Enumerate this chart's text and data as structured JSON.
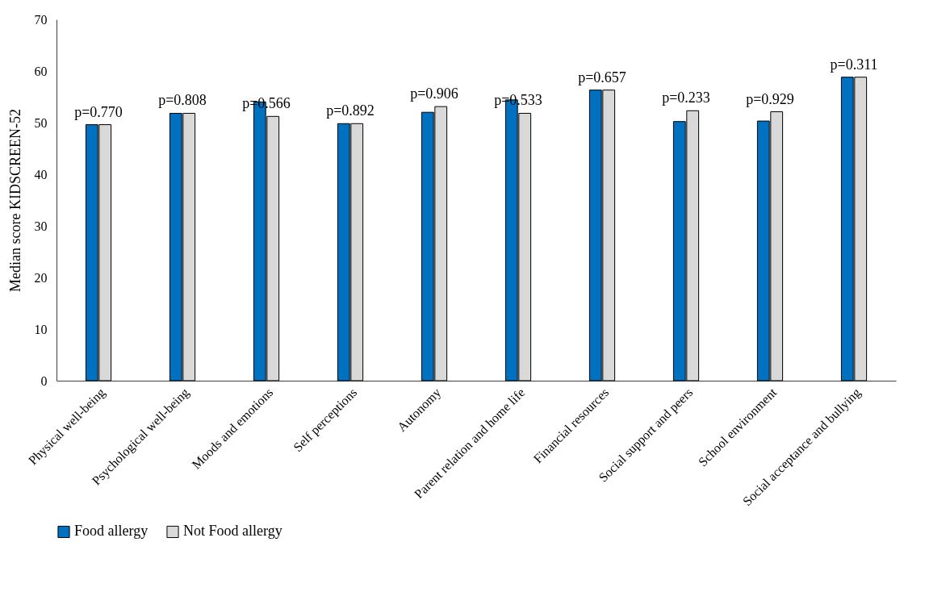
{
  "chart_data": {
    "type": "bar",
    "ylabel": "Median score KIDSCREEN-52",
    "categories": [
      "Physical well-being",
      "Psychological well-being",
      "Moods and emotions",
      "Self perceptions",
      "Autonomy",
      "Parent relation and home life",
      "Financial resources",
      "Social support and peers",
      "School environment",
      "Social acceptance and bullying"
    ],
    "series": [
      {
        "name": "Food allergy",
        "color": "#0070c0",
        "values": [
          49.6,
          51.8,
          54.0,
          49.8,
          52.0,
          54.4,
          56.3,
          50.2,
          50.3,
          58.8
        ]
      },
      {
        "name": "Not Food allergy",
        "color": "#d9d9d9",
        "values": [
          49.6,
          51.8,
          51.2,
          49.8,
          53.1,
          51.8,
          56.3,
          52.3,
          52.1,
          58.8
        ]
      }
    ],
    "ylim": [
      0,
      70
    ],
    "yticks": [
      0,
      10,
      20,
      30,
      40,
      50,
      60,
      70
    ],
    "grid": false,
    "legend": "bottom",
    "annotations": [
      {
        "text": "p=0.770",
        "x": "Physical well-being",
        "y": 49.6
      },
      {
        "text": "p=0.808",
        "x": "Psychological well-being",
        "y": 51.8
      },
      {
        "text": "p=0.566",
        "x": "Moods and emotions",
        "y": 51.2
      },
      {
        "text": "p=0.892",
        "x": "Self perceptions",
        "y": 49.8
      },
      {
        "text": "p=0.906",
        "x": "Autonomy",
        "y": 53.1
      },
      {
        "text": "p=0.533",
        "x": "Parent relation and home life",
        "y": 51.8
      },
      {
        "text": "p=0.657",
        "x": "Financial resources",
        "y": 56.3
      },
      {
        "text": "p=0.233",
        "x": "Social support and peers",
        "y": 52.3
      },
      {
        "text": "p=0.929",
        "x": "School environment",
        "y": 52.1
      },
      {
        "text": "p=0.311",
        "x": "Social acceptance and bullying",
        "y": 58.8
      }
    ]
  }
}
